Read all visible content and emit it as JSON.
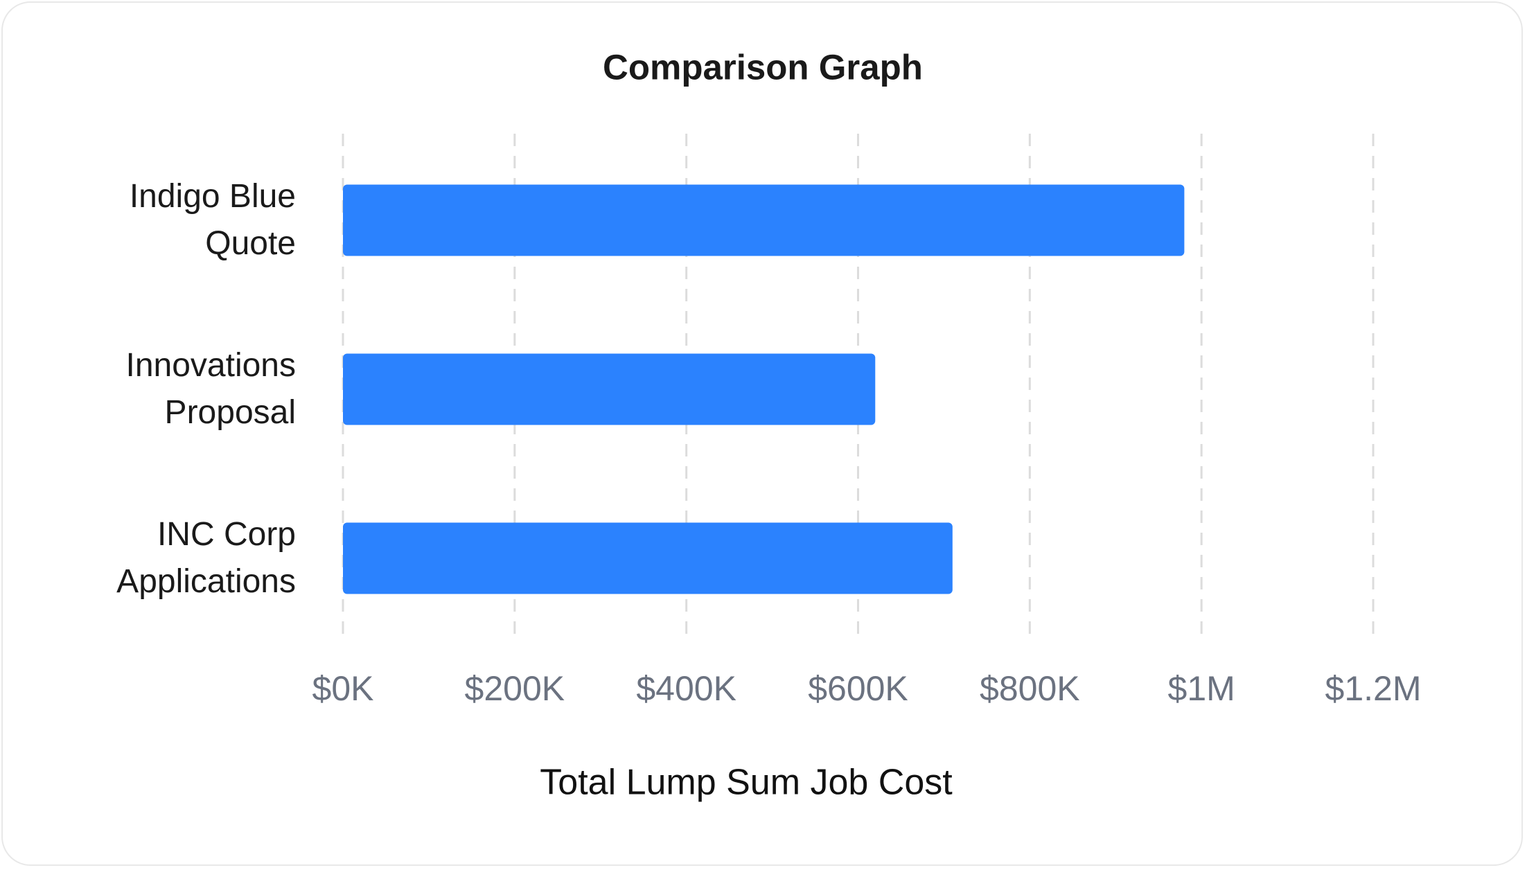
{
  "chart_data": {
    "type": "bar",
    "orientation": "horizontal",
    "title": "Comparison Graph",
    "x_label": "Total Lump Sum Job Cost",
    "categories": [
      "Indigo Blue Quote",
      "Innovations Proposal",
      "INC Corp Applications"
    ],
    "values": [
      980000,
      620000,
      710000
    ],
    "color": "#2b82fe",
    "xlim": [
      0,
      1200000
    ],
    "xticks": [
      {
        "value": 0,
        "label": "$0K"
      },
      {
        "value": 200000,
        "label": "$200K"
      },
      {
        "value": 400000,
        "label": "$400K"
      },
      {
        "value": 600000,
        "label": "$600K"
      },
      {
        "value": 800000,
        "label": "$800K"
      },
      {
        "value": 1000000,
        "label": "$1M"
      },
      {
        "value": 1200000,
        "label": "$1.2M"
      }
    ],
    "grid": true
  }
}
